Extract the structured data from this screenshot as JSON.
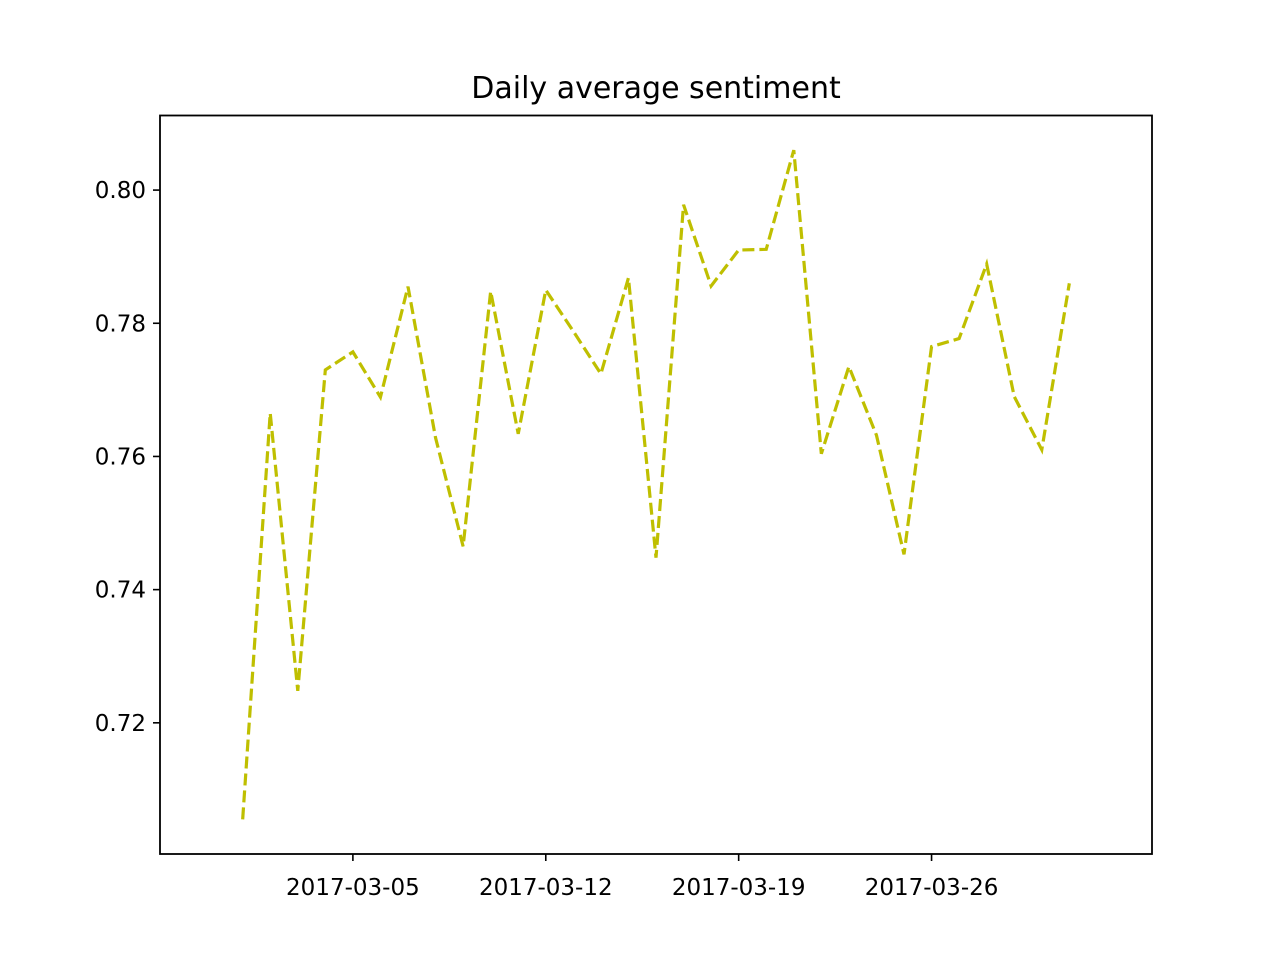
{
  "chart_data": {
    "type": "line",
    "title": "Daily average sentiment",
    "xlabel": "",
    "ylabel": "",
    "x": [
      "2017-03-01",
      "2017-03-02",
      "2017-03-03",
      "2017-03-04",
      "2017-03-05",
      "2017-03-06",
      "2017-03-07",
      "2017-03-08",
      "2017-03-09",
      "2017-03-10",
      "2017-03-11",
      "2017-03-12",
      "2017-03-13",
      "2017-03-14",
      "2017-03-15",
      "2017-03-16",
      "2017-03-17",
      "2017-03-18",
      "2017-03-19",
      "2017-03-20",
      "2017-03-21",
      "2017-03-22",
      "2017-03-23",
      "2017-03-24",
      "2017-03-25",
      "2017-03-26",
      "2017-03-27",
      "2017-03-28",
      "2017-03-29",
      "2017-03-30",
      "2017-03-31"
    ],
    "series": [
      {
        "values": [
          0.7055,
          0.7665,
          0.7248,
          0.773,
          0.7757,
          0.7689,
          0.7855,
          0.7628,
          0.7465,
          0.7848,
          0.7634,
          0.785,
          0.7788,
          0.7724,
          0.7868,
          0.7448,
          0.7978,
          0.7856,
          0.791,
          0.7911,
          0.806,
          0.7604,
          0.7735,
          0.7632,
          0.7453,
          0.7765,
          0.7777,
          0.7889,
          0.769,
          0.761,
          0.786
        ],
        "style": "dashed",
        "color": "#bfbf00"
      }
    ],
    "xticks": [
      "2017-03-05",
      "2017-03-12",
      "2017-03-19",
      "2017-03-26"
    ],
    "yticks": [
      "0.72",
      "0.74",
      "0.76",
      "0.78",
      "0.80"
    ],
    "xlim": [
      "2017-02-26",
      "2017-04-03"
    ],
    "ylim": [
      0.7003,
      0.8112
    ],
    "grid": false,
    "legend": "none"
  }
}
